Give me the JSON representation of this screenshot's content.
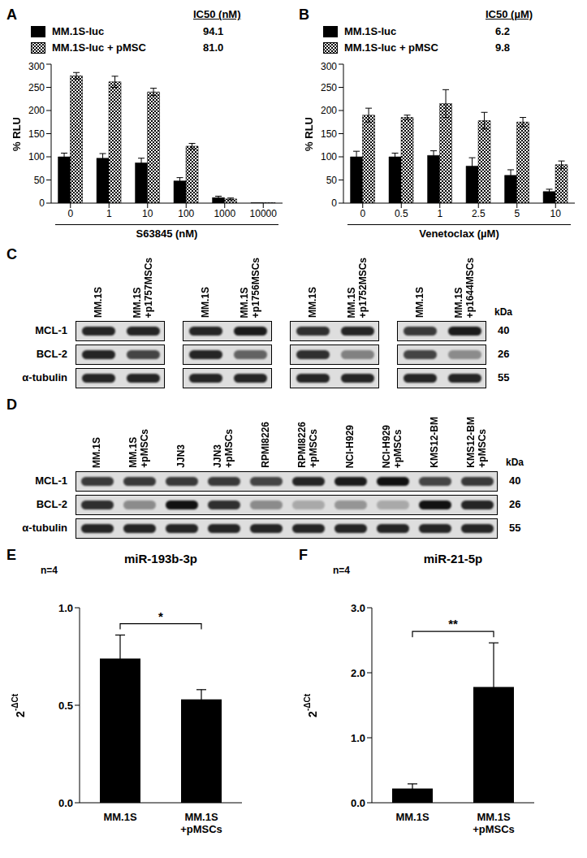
{
  "chart_data": [
    {
      "panel": "A",
      "type": "bar",
      "categories": [
        "0",
        "1",
        "10",
        "100",
        "1000",
        "10000"
      ],
      "xlabel": "S63845 (nM)",
      "ylabel": "% RLU",
      "ylim": [
        0,
        300
      ],
      "yticks": [
        0,
        50,
        100,
        150,
        200,
        250,
        300
      ],
      "ic50_title": "IC50 (nM)",
      "series": [
        {
          "name": "MM.1S-luc",
          "color": "#000000",
          "marker": "solid",
          "values": [
            100,
            97,
            87,
            48,
            12,
            1
          ],
          "errors": [
            8,
            10,
            10,
            7,
            3,
            0
          ],
          "ic50": {
            "value": 94.1,
            "label": "94.1"
          }
        },
        {
          "name": "MM.1S-luc + pMSC",
          "color": "#000000",
          "marker": "checkered",
          "values": [
            275,
            262,
            240,
            123,
            9,
            1
          ],
          "errors": [
            7,
            12,
            8,
            6,
            2,
            0
          ],
          "ic50": {
            "value": 81.0,
            "label": "81.0"
          }
        }
      ]
    },
    {
      "panel": "B",
      "type": "bar",
      "categories": [
        "0",
        "0.5",
        "1",
        "2.5",
        "5",
        "10"
      ],
      "xlabel": "Venetoclax (µM)",
      "ylabel": "% RLU",
      "ylim": [
        0,
        300
      ],
      "yticks": [
        0,
        50,
        100,
        150,
        200,
        250,
        300
      ],
      "ic50_title": "IC50 (µM)",
      "series": [
        {
          "name": "MM.1S-luc",
          "color": "#000000",
          "marker": "solid",
          "values": [
            100,
            100,
            103,
            80,
            60,
            25
          ],
          "errors": [
            12,
            8,
            10,
            18,
            12,
            5
          ],
          "ic50": {
            "value": 6.2,
            "label": "6.2"
          }
        },
        {
          "name": "MM.1S-luc + pMSC",
          "color": "#000000",
          "marker": "checkered",
          "values": [
            190,
            185,
            215,
            178,
            175,
            83
          ],
          "errors": [
            15,
            5,
            30,
            18,
            10,
            8
          ],
          "ic50": {
            "value": 9.8,
            "label": "9.8"
          }
        }
      ]
    },
    {
      "panel": "E",
      "type": "bar",
      "title": "miR-193b-3p",
      "annotation": "n=4",
      "categories": [
        "MM.1S",
        "MM.1S +pMSCs"
      ],
      "ylabel": "2",
      "ylabel_sup": "-ΔCt",
      "ylim": [
        0,
        1
      ],
      "yticks": [
        {
          "value": 0,
          "label": "0.0"
        },
        {
          "value": 0.5,
          "label": "0.5"
        },
        {
          "value": 1,
          "label": "1.0"
        }
      ],
      "color": "#000000",
      "values": [
        0.74,
        0.53
      ],
      "errors": [
        0.12,
        0.05
      ],
      "significance": "*"
    },
    {
      "panel": "F",
      "type": "bar",
      "title": "miR-21-5p",
      "annotation": "n=4",
      "categories": [
        "MM.1S",
        "MM.1S +pMSCs"
      ],
      "ylabel": "2",
      "ylabel_sup": "-ΔCt",
      "ylim": [
        0,
        3
      ],
      "yticks": [
        {
          "value": 0,
          "label": "0.0"
        },
        {
          "value": 1,
          "label": "1.0"
        },
        {
          "value": 2,
          "label": "2.0"
        },
        {
          "value": 3,
          "label": "3.0"
        }
      ],
      "color": "#000000",
      "values": [
        0.22,
        1.78
      ],
      "errors": [
        0.07,
        0.68
      ],
      "significance": "**"
    }
  ],
  "blots": [
    {
      "panel": "C",
      "unit": "kDa",
      "rows": [
        {
          "name": "MCL-1",
          "kda": 40
        },
        {
          "name": "BCL-2",
          "kda": 26
        },
        {
          "name": "α-tubulin",
          "kda": 55
        }
      ],
      "groups": [
        {
          "lanes": [
            "MM.1S",
            "MM.1S +p1757MSCs"
          ],
          "intensity": [
            [
              0.9,
              0.9
            ],
            [
              0.9,
              0.75
            ],
            [
              0.9,
              0.9
            ]
          ]
        },
        {
          "lanes": [
            "MM.1S",
            "MM.1S +p1756MSCs"
          ],
          "intensity": [
            [
              0.9,
              0.95
            ],
            [
              0.9,
              0.6
            ],
            [
              0.9,
              0.9
            ]
          ]
        },
        {
          "lanes": [
            "MM.1S",
            "MM.1S +p1752MSCs"
          ],
          "intensity": [
            [
              0.85,
              0.9
            ],
            [
              0.85,
              0.45
            ],
            [
              0.9,
              0.9
            ]
          ]
        },
        {
          "lanes": [
            "MM.1S",
            "MM.1S +p1644MSCs"
          ],
          "intensity": [
            [
              0.8,
              0.95
            ],
            [
              0.75,
              0.4
            ],
            [
              0.9,
              0.9
            ]
          ]
        }
      ]
    },
    {
      "panel": "D",
      "unit": "kDa",
      "rows": [
        {
          "name": "MCL-1",
          "kda": 40
        },
        {
          "name": "BCL-2",
          "kda": 26
        },
        {
          "name": "α-tubulin",
          "kda": 55
        }
      ],
      "groups": [
        {
          "lanes": [
            "MM.1S",
            "MM.1S +pMSCs",
            "JJN3",
            "JJN3 +pMSCs",
            "RPMI8226",
            "RPMI8226 +pMSCs",
            "NCI-H929",
            "NCI-H929 +pMSCs",
            "KMS12-BM",
            "KMS12-BM +pMSCs"
          ],
          "intensity": [
            [
              0.8,
              0.8,
              0.8,
              0.8,
              0.75,
              0.9,
              0.95,
              1,
              0.75,
              0.8
            ],
            [
              0.85,
              0.4,
              1,
              0.85,
              0.4,
              0.25,
              0.35,
              0.25,
              1,
              0.9
            ],
            [
              0.9,
              0.9,
              0.9,
              0.9,
              0.9,
              0.9,
              0.9,
              0.9,
              0.9,
              0.9
            ]
          ]
        }
      ]
    }
  ]
}
